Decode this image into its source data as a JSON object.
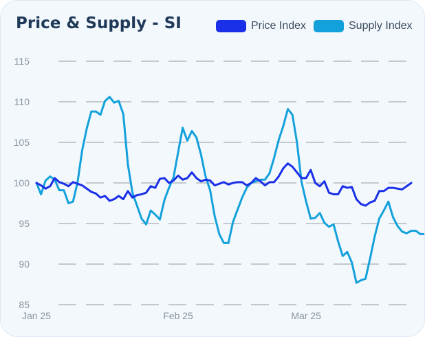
{
  "chart_data": {
    "type": "line",
    "title": "Price & Supply - SI",
    "xlabel": "",
    "ylabel": "",
    "ylim": [
      85,
      115
    ],
    "yticks": [
      85,
      90,
      95,
      100,
      105,
      110,
      115
    ],
    "xticks": [
      {
        "label": "Jan 25",
        "index": 0
      },
      {
        "label": "Feb 25",
        "index": 31
      },
      {
        "label": "Mar 25",
        "index": 59
      }
    ],
    "grid": true,
    "legend_position": "top-right",
    "series": [
      {
        "name": "Price Index",
        "color": "#1a2fe8",
        "values": [
          100,
          99.7,
          99.3,
          99.6,
          100.6,
          100.1,
          99.9,
          99.6,
          100.1,
          99.9,
          99.7,
          99.3,
          98.9,
          98.7,
          98.2,
          98.4,
          97.8,
          98.0,
          98.4,
          98.0,
          99.0,
          98.2,
          98.5,
          98.6,
          98.8,
          99.6,
          99.4,
          100.5,
          100.6,
          100.0,
          100.3,
          100.9,
          100.4,
          100.6,
          101.3,
          100.6,
          100.2,
          100.4,
          100.3,
          99.7,
          99.9,
          100.1,
          99.8,
          100.0,
          100.1,
          100.1,
          99.7,
          100.0,
          100.6,
          100.2,
          99.7,
          100.1,
          100.1,
          100.8,
          101.8,
          102.4,
          102.0,
          101.3,
          100.6,
          100.6,
          101.6,
          100.0,
          99.6,
          100.2,
          98.8,
          98.6,
          98.6,
          99.6,
          99.4,
          99.5,
          98.0,
          97.4,
          97.2,
          97.6,
          97.8,
          99.0,
          99.0,
          99.4,
          99.4,
          99.3,
          99.2,
          99.6,
          100.0
        ]
      },
      {
        "name": "Supply Index",
        "color": "#14a1db",
        "values": [
          100,
          98.6,
          100.3,
          100.8,
          100.4,
          99.1,
          99.1,
          97.5,
          97.7,
          100.1,
          104.0,
          106.7,
          108.8,
          108.8,
          108.4,
          110.1,
          110.6,
          109.9,
          110.1,
          108.5,
          102.3,
          98.8,
          97.2,
          95.6,
          94.9,
          96.6,
          96.1,
          95.5,
          97.9,
          99.4,
          100.7,
          103.8,
          106.8,
          105.2,
          106.4,
          105.6,
          103.5,
          100.8,
          99.1,
          95.9,
          93.7,
          92.6,
          92.6,
          95.2,
          96.7,
          98.2,
          99.4,
          100.0,
          100.2,
          100.4,
          100.4,
          101.2,
          103.1,
          105.3,
          107.0,
          109.1,
          108.4,
          105.0,
          100.1,
          97.7,
          95.6,
          95.7,
          96.3,
          95.1,
          94.6,
          94.9,
          92.8,
          91.0,
          91.5,
          90.2,
          87.7,
          88.0,
          88.2,
          90.7,
          93.4,
          95.6,
          96.6,
          97.7,
          95.8,
          94.7,
          94.0,
          93.8,
          94.1,
          94.1,
          93.7,
          93.7
        ]
      }
    ]
  }
}
